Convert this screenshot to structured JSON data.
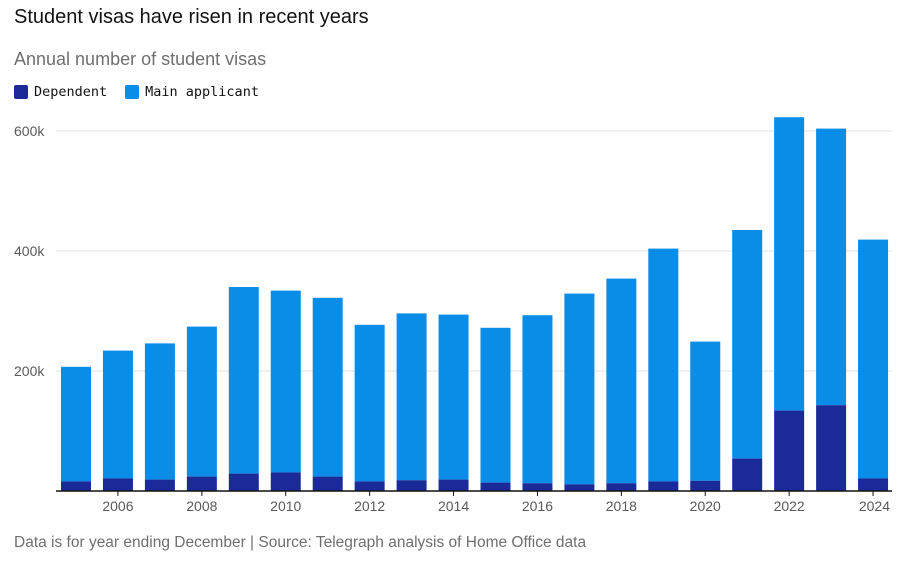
{
  "colors": {
    "dependent": "#1a2b99",
    "main": "#0a8de6",
    "grid": "#e2e2e2",
    "axis": "#121212"
  },
  "chart_data": {
    "type": "bar",
    "stacked": true,
    "title": "Student visas have risen in recent years",
    "subtitle": "Annual number of student visas",
    "footer": "Data is for year ending December | Source: Telegraph analysis of Home Office data",
    "categories": [
      "2005",
      "2006",
      "2007",
      "2008",
      "2009",
      "2010",
      "2011",
      "2012",
      "2013",
      "2014",
      "2015",
      "2016",
      "2017",
      "2018",
      "2019",
      "2020",
      "2021",
      "2022",
      "2023",
      "2024"
    ],
    "x_tick_labels": [
      "2006",
      "2008",
      "2010",
      "2012",
      "2014",
      "2016",
      "2018",
      "2020",
      "2022",
      "2024"
    ],
    "series": [
      {
        "name": "Dependent",
        "values": [
          16000,
          21000,
          19000,
          24000,
          29000,
          31000,
          24000,
          16000,
          18000,
          19000,
          14000,
          13000,
          11000,
          13000,
          16000,
          17000,
          54000,
          134000,
          143000,
          21000
        ]
      },
      {
        "name": "Main applicant",
        "values": [
          191000,
          213000,
          227000,
          250000,
          311000,
          303000,
          298000,
          261000,
          278000,
          275000,
          258000,
          280000,
          318000,
          341000,
          388000,
          232000,
          381000,
          489000,
          461000,
          398000
        ]
      }
    ],
    "y_ticks": [
      200000,
      400000,
      600000
    ],
    "y_tick_labels": [
      "200k",
      "400k",
      "600k"
    ],
    "ylim": [
      0,
      640000
    ],
    "xlabel": "",
    "ylabel": "",
    "legend": "top-left"
  }
}
